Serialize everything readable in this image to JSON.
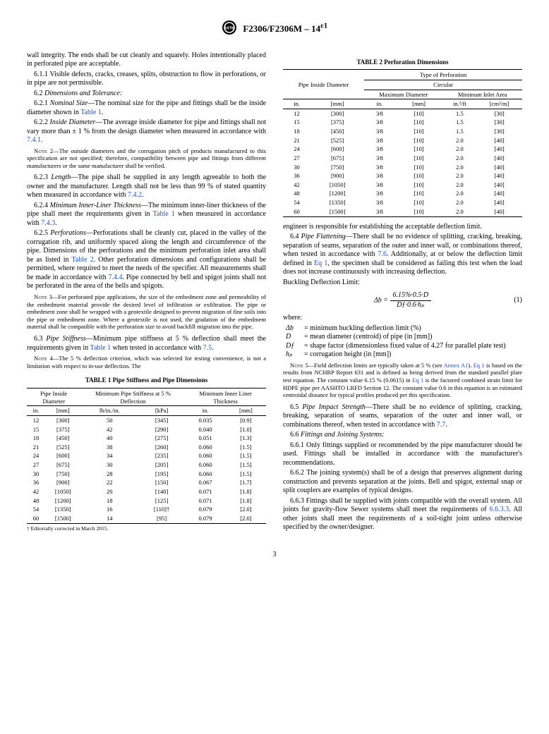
{
  "header": {
    "designation": "F2306/F2306M – 14",
    "epsilon": "ε1"
  },
  "left": {
    "p_wall": "wall integrity. The ends shall be cut cleanly and squarely. Holes intentionally placed in perforated pipe are acceptable.",
    "p_611": "6.1.1 Visible defects, cracks, creases, splits, obstruction to flow in perforations, or in pipe are not permissible.",
    "p_62": "6.2 ",
    "p_62_it": "Dimensions and Tolerance:",
    "p_621a": "6.2.1 ",
    "p_621_it": "Nominal Size",
    "p_621b": "—The nominal size for the pipe and fittings shall be the inside diameter shown in ",
    "p_621_link": "Table 1",
    "p_621c": ".",
    "p_622a": "6.2.2 ",
    "p_622_it": "Inside Diameter",
    "p_622b": "—The average inside diameter for pipe and fittings shall not vary more than ± 1 % from the design diameter when measured in accordance with ",
    "p_622_link": "7.4.1",
    "p_622c": ".",
    "note2a": "Note",
    "note2b": " 2—The outside diameters and the corrugation pitch of products manufactured to this specification are not specified; therefore, compatibility between pipe and fittings from different manufacturers or the same manufacturer shall be verified.",
    "p_623a": "6.2.3 ",
    "p_623_it": "Length",
    "p_623b": "—The pipe shall be supplied in any length agreeable to both the owner and the manufacturer. Length shall not be less than 99 % of stated quantity when measured in accordance with ",
    "p_623_link": "7.4.2",
    "p_623c": ".",
    "p_624a": "6.2.4 ",
    "p_624_it": "Minimum Inner-Liner Thickness",
    "p_624b": "—The minimum inner-liner thickness of the pipe shall meet the requirements given in ",
    "p_624_link1": "Table 1",
    "p_624c": " when measured in accordance with ",
    "p_624_link2": "7.4.3",
    "p_624d": ".",
    "p_625a": "6.2.5 ",
    "p_625_it": "Perforations",
    "p_625b": "—Perforations shall be cleanly cut, placed in the valley of the corrugation rib, and uniformly spaced along the length and circumference of the pipe. Dimensions of the perforations and the minimum perforation inlet area shall be as listed in ",
    "p_625_link1": "Table 2",
    "p_625c": ". Other perforation dimensions and configurations shall be permitted, where required to meet the needs of the specifier. All measurements shall be made in accordance with ",
    "p_625_link2": "7.4.4",
    "p_625d": ". Pipe connected by bell and spigot joints shall not be perforated in the area of the bells and spigots.",
    "note3a": "Note",
    "note3b": " 3—For perforated pipe applications, the size of the embedment zone and permeability of the embedment material provide the desired level of infiltration or exfiltration. The pipe or embedment zone shall be wrapped with a geotextile designed to prevent migration of fine soils into the pipe or embedment zone. Where a geotextile is not used, the gradation of the embedment material shall be compatible with the perforation size to avoid backfill migration into the pipe.",
    "p_63a": "6.3 ",
    "p_63_it": "Pipe Stiffness",
    "p_63b": "—Minimum pipe stiffness at 5 % deflection shall meet the requirements given in ",
    "p_63_link1": "Table 1",
    "p_63c": " when tested in accordance with ",
    "p_63_link2": "7.5",
    "p_63d": ".",
    "note4a": "Note",
    "note4b": " 4—The 5 % deflection criterion, which was selected for testing convenience, is not a limitation with respect to in-use deflection. The"
  },
  "table1": {
    "title": "TABLE 1 Pipe Stiffness and Pipe Dimensions",
    "h_pipe": "Pipe Inside Diameter",
    "h_stiff": "Minimum Pipe Stiffness at 5 % Deflection",
    "h_liner": "Minimum Inner Liner Thickness",
    "u_in": "in.",
    "u_mm": "[mm]",
    "u_lb": "lb/in./in.",
    "u_kpa": "[kPa]",
    "rows": [
      [
        "12",
        "[300]",
        "50",
        "[345]",
        "0.035",
        "[0.9]"
      ],
      [
        "15",
        "[375]",
        "42",
        "[290]",
        "0.040",
        "[1.0]"
      ],
      [
        "18",
        "[450]",
        "40",
        "[275]",
        "0.051",
        "[1.3]"
      ],
      [
        "21",
        "[525]",
        "38",
        "[260]",
        "0.060",
        "[1.5]"
      ],
      [
        "24",
        "[600]",
        "34",
        "[235]",
        "0.060",
        "[1.5]"
      ],
      [
        "27",
        "[675]",
        "30",
        "[205]",
        "0.060",
        "[1.5]"
      ],
      [
        "30",
        "[750]",
        "28",
        "[195]",
        "0.060",
        "[1.5]"
      ],
      [
        "36",
        "[900]",
        "22",
        "[150]",
        "0.067",
        "[1.7]"
      ],
      [
        "42",
        "[1050]",
        "20",
        "[140]",
        "0.071",
        "[1.8]"
      ],
      [
        "48",
        "[1200]",
        "18",
        "[125]",
        "0.071",
        "[1.8]"
      ],
      [
        "54",
        "[1350]",
        "16",
        "[110]†",
        "0.079",
        "[2.0]"
      ],
      [
        "60",
        "[1500]",
        "14",
        "[95]",
        "0.079",
        "[2.0]"
      ]
    ],
    "footnote": "† Editorially corrected in March 2015."
  },
  "table2": {
    "title": "TABLE 2 Perforation Dimensions",
    "h_pipe": "Pipe Inside Diameter",
    "h_type": "Type of Perforation",
    "h_circ": "Circular",
    "h_max": "Maximum Diameter",
    "h_min": "Minimum Inlet Area",
    "u_in": "in.",
    "u_mm": "[mm]",
    "u_in2": "in.²/ft",
    "u_cm2": "[cm²/m]",
    "frac38": "3⁄8",
    "rows": [
      [
        "12",
        "[300]",
        "[10]",
        "1.5",
        "[30]"
      ],
      [
        "15",
        "[375]",
        "[10]",
        "1.5",
        "[30]"
      ],
      [
        "18",
        "[450]",
        "[10]",
        "1.5",
        "[30]"
      ],
      [
        "21",
        "[525]",
        "[10]",
        "2.0",
        "[40]"
      ],
      [
        "24",
        "[600]",
        "[10]",
        "2.0",
        "[40]"
      ],
      [
        "27",
        "[675]",
        "[10]",
        "2.0",
        "[40]"
      ],
      [
        "30",
        "[750]",
        "[10]",
        "2.0",
        "[40]"
      ],
      [
        "36",
        "[900]",
        "[10]",
        "2.0",
        "[40]"
      ],
      [
        "42",
        "[1050]",
        "[10]",
        "2.0",
        "[40]"
      ],
      [
        "48",
        "[1200]",
        "[10]",
        "2.0",
        "[40]"
      ],
      [
        "54",
        "[1350]",
        "[10]",
        "2.0",
        "[40]"
      ],
      [
        "60",
        "[1500]",
        "[10]",
        "2.0",
        "[40]"
      ]
    ]
  },
  "right": {
    "p_eng": "engineer is responsible for establishing the acceptable deflection limit.",
    "p_64a": "6.4 ",
    "p_64_it": "Pipe Flattening",
    "p_64b": "—There shall be no evidence of splitting, cracking, breaking, separation of seams, separation of the outer and inner wall, or combinations thereof, when tested in accordance with ",
    "p_64_link1": "7.6",
    "p_64c": ". Additionally, at or below the deflection limit defined in ",
    "p_64_link2": "Eq 1",
    "p_64d": ", the specimen shall be considered as failing this test when the load does not increase continuously with increasing deflection.",
    "buckling": "Buckling Deflection Limit:",
    "eq_lhs": "Δb = ",
    "eq_num_txt": "6.15%·0.5·D",
    "eq_den_txt": "Dƒ·0.6·hₚ",
    "eq_label": "(1)",
    "where": "where:",
    "w1a": "Δb",
    "w1b": "=  minimum buckling deflection limit (%)",
    "w2a": "D",
    "w2b": "=  mean diameter (centroid) of pipe (in [mm])",
    "w3a": "Dƒ",
    "w3b": "=  shape factor (dimensionless fixed value of 4.27 for parallel plate test)",
    "w4a": "hₚ",
    "w4b": "=  corrugation height (in [mm])",
    "note5a": "Note",
    "note5b": " 5—Field deflection limits are typically taken at 5 % (see ",
    "note5_link1": "Annex A1",
    "note5c": "). ",
    "note5_link2": "Eq 1",
    "note5d": " is based on the results from NCHRP Report 631 and is defined as being derived from the standard parallel plate test equation. The constant value 6.15 % (0.0615) in ",
    "note5_link3": "Eq 1",
    "note5e": " is the factored combined strain limit for HDPE pipe per AASHTO LRFD Section 12. The constant value 0.6 in this equation is an estimated centroidal distance for typical profiles produced per this specification.",
    "p_65a": "6.5 ",
    "p_65_it": "Pipe Impact Strength",
    "p_65b": "—There shall be no evidence of splitting, cracking, breaking, separation of seams, separation of the outer and inner wall, or combinations thereof, when tested in accordance with ",
    "p_65_link": "7.7",
    "p_65c": ".",
    "p_66": "6.6 ",
    "p_66_it": "Fittings and Joining Systems:",
    "p_661": "6.6.1 Only fittings supplied or recommended by the pipe manufacturer should be used. Fittings shall be installed in accordance with the manufacturer's recommendations.",
    "p_662": "6.6.2 The joining system(s) shall be of a design that preserves alignment during construction and prevents separation at the joints. Bell and spigot, external snap or split couplers are examples of typical designs.",
    "p_663a": "6.6.3 Fittings shall be supplied with joints compatible with the overall system. All joints for gravity-flow Sewer systems shall meet the requirements of ",
    "p_663_link": "6.6.3.3",
    "p_663b": ". All other joints shall meet the requirements of a soil-tight joint unless otherwise specified by the owner/designer."
  },
  "page_num": "3"
}
